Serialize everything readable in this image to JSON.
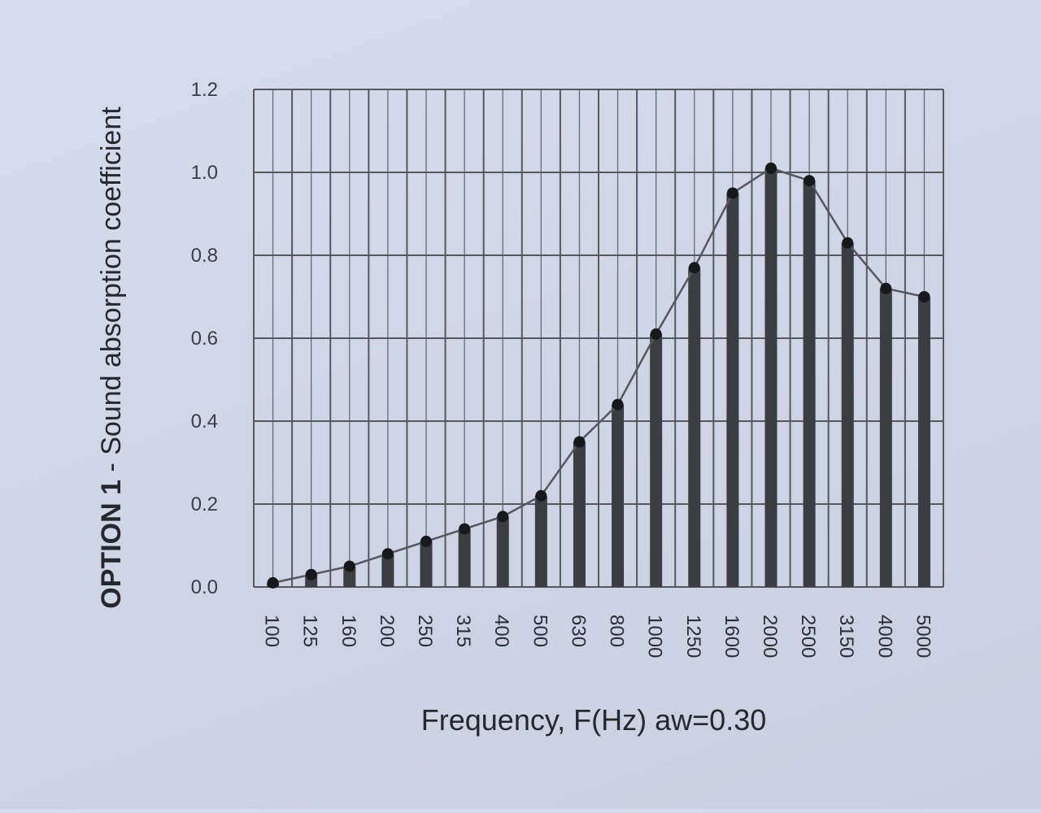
{
  "chart_data": {
    "type": "bar",
    "ylabel_prefix": "OPTION 1",
    "ylabel_rest": " - Sound absorption coefficient",
    "xlabel": "Frequency, F(Hz) aw=0.30",
    "ylim": [
      0,
      1.2
    ],
    "yticks": [
      "0.0",
      "0.2",
      "0.4",
      "0.6",
      "0.8",
      "1.0",
      "1.2"
    ],
    "grid": true,
    "categories": [
      "100",
      "125",
      "160",
      "200",
      "250",
      "315",
      "400",
      "500",
      "630",
      "800",
      "1000",
      "1250",
      "1600",
      "2000",
      "2500",
      "3150",
      "4000",
      "5000"
    ],
    "values": [
      0.01,
      0.03,
      0.05,
      0.08,
      0.11,
      0.14,
      0.17,
      0.22,
      0.35,
      0.44,
      0.61,
      0.77,
      0.95,
      1.01,
      0.98,
      0.83,
      0.72,
      0.7
    ],
    "series_overlay": "line-with-markers",
    "colors": {
      "bar": "#3b3d42",
      "line": "#54575e",
      "marker": "#17181b",
      "grid": "#55585f"
    }
  }
}
